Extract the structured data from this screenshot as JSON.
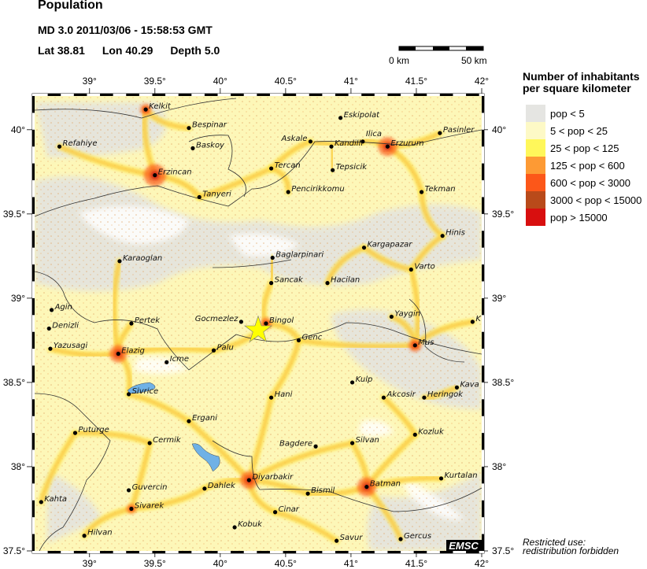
{
  "header": {
    "title": "Population",
    "event": "MD 3.0  2011/03/06 - 15:58:53 GMT",
    "lat_label": "Lat 38.81",
    "lon_label": "Lon  40.29",
    "depth_label": "Depth  5.0"
  },
  "scale_bar": {
    "start_label": "0 km",
    "end_label": "50 km"
  },
  "map": {
    "lon_range": [
      38.58,
      42.0
    ],
    "lat_range": [
      37.5,
      40.2
    ],
    "lon_ticks": [
      "39°",
      "39.5°",
      "40°",
      "40.5°",
      "41°",
      "41.5°",
      "42°"
    ],
    "lon_tick_values": [
      39,
      39.5,
      40,
      40.5,
      41,
      41.5,
      42
    ],
    "lat_ticks": [
      "40°",
      "39.5°",
      "39°",
      "38.5°",
      "38°",
      "37.5°"
    ],
    "lat_tick_values": [
      40,
      39.5,
      39,
      38.5,
      38,
      37.5
    ],
    "epicenter": {
      "lat": 38.81,
      "lon": 40.29,
      "color": "#ffff00"
    },
    "lake_color": "#6fb1e6",
    "cities": [
      {
        "name": "Kelkit",
        "lon": 39.43,
        "lat": 40.12
      },
      {
        "name": "Bespinar",
        "lon": 39.76,
        "lat": 40.01
      },
      {
        "name": "Refahiye",
        "lon": 38.77,
        "lat": 39.9
      },
      {
        "name": "Baskoy",
        "lon": 39.79,
        "lat": 39.89
      },
      {
        "name": "Erzincan",
        "lon": 39.5,
        "lat": 39.73
      },
      {
        "name": "Tanyeri",
        "lon": 39.84,
        "lat": 39.6
      },
      {
        "name": "Karaoglan",
        "lon": 39.23,
        "lat": 39.22
      },
      {
        "name": "Agin",
        "lon": 38.71,
        "lat": 38.93
      },
      {
        "name": "Denizli",
        "lon": 38.69,
        "lat": 38.82
      },
      {
        "name": "Pertek",
        "lon": 39.32,
        "lat": 38.85
      },
      {
        "name": "Yazusagi",
        "lon": 38.7,
        "lat": 38.7
      },
      {
        "name": "Elazig",
        "lon": 39.22,
        "lat": 38.67
      },
      {
        "name": "Icme",
        "lon": 39.59,
        "lat": 38.62
      },
      {
        "name": "Palu",
        "lon": 39.95,
        "lat": 38.69
      },
      {
        "name": "Sivrice",
        "lon": 39.3,
        "lat": 38.43
      },
      {
        "name": "Ergani",
        "lon": 39.76,
        "lat": 38.27
      },
      {
        "name": "Puturge",
        "lon": 38.89,
        "lat": 38.2
      },
      {
        "name": "Cermik",
        "lon": 39.46,
        "lat": 38.14
      },
      {
        "name": "Guvercin",
        "lon": 39.3,
        "lat": 37.86
      },
      {
        "name": "Sivarek",
        "lon": 39.32,
        "lat": 37.75
      },
      {
        "name": "Kahta",
        "lon": 38.63,
        "lat": 37.79
      },
      {
        "name": "Hilvan",
        "lon": 38.96,
        "lat": 37.59
      },
      {
        "name": "Dahlek",
        "lon": 39.88,
        "lat": 37.87
      },
      {
        "name": "Kobuk",
        "lon": 40.11,
        "lat": 37.64
      },
      {
        "name": "Diyarbakir",
        "lon": 40.22,
        "lat": 37.92
      },
      {
        "name": "Eskipolat",
        "lon": 40.92,
        "lat": 40.07
      },
      {
        "name": "Askale",
        "lon": 40.69,
        "lat": 39.93
      },
      {
        "name": "Kandilli",
        "lon": 40.85,
        "lat": 39.9
      },
      {
        "name": "Ilica",
        "lon": 41.09,
        "lat": 39.93
      },
      {
        "name": "Erzurum",
        "lon": 41.28,
        "lat": 39.9
      },
      {
        "name": "Pasinler",
        "lon": 41.68,
        "lat": 39.98
      },
      {
        "name": "Tercan",
        "lon": 40.39,
        "lat": 39.77
      },
      {
        "name": "Tepsicik",
        "lon": 40.86,
        "lat": 39.76
      },
      {
        "name": "Pencirikkomu",
        "lon": 40.52,
        "lat": 39.63
      },
      {
        "name": "Tekman",
        "lon": 41.54,
        "lat": 39.63
      },
      {
        "name": "Hinis",
        "lon": 41.7,
        "lat": 39.37
      },
      {
        "name": "Kargapazar",
        "lon": 41.1,
        "lat": 39.3
      },
      {
        "name": "Baglarpinari",
        "lon": 40.4,
        "lat": 39.24
      },
      {
        "name": "Varto",
        "lon": 41.46,
        "lat": 39.17
      },
      {
        "name": "Sancak",
        "lon": 40.39,
        "lat": 39.09
      },
      {
        "name": "Hacilan",
        "lon": 40.82,
        "lat": 39.09
      },
      {
        "name": "Yaygin",
        "lon": 41.31,
        "lat": 38.89
      },
      {
        "name": "K",
        "lon": 41.93,
        "lat": 38.86
      },
      {
        "name": "Gocmezlez",
        "lon": 40.16,
        "lat": 38.86
      },
      {
        "name": "Bingol",
        "lon": 40.35,
        "lat": 38.85
      },
      {
        "name": "Genc",
        "lon": 40.6,
        "lat": 38.75
      },
      {
        "name": "Mus",
        "lon": 41.49,
        "lat": 38.72
      },
      {
        "name": "Kulp",
        "lon": 41.01,
        "lat": 38.5
      },
      {
        "name": "Hani",
        "lon": 40.39,
        "lat": 38.41
      },
      {
        "name": "Akcosir",
        "lon": 41.25,
        "lat": 38.41
      },
      {
        "name": "Heringok",
        "lon": 41.56,
        "lat": 38.41
      },
      {
        "name": "Kava",
        "lon": 41.81,
        "lat": 38.47
      },
      {
        "name": "Kozluk",
        "lon": 41.49,
        "lat": 38.19
      },
      {
        "name": "Silvan",
        "lon": 41.01,
        "lat": 38.14
      },
      {
        "name": "Bagdere",
        "lon": 40.73,
        "lat": 38.12
      },
      {
        "name": "Kurtalan",
        "lon": 41.69,
        "lat": 37.93
      },
      {
        "name": "Batman",
        "lon": 41.12,
        "lat": 37.88
      },
      {
        "name": "Bismil",
        "lon": 40.67,
        "lat": 37.84
      },
      {
        "name": "Cinar",
        "lon": 40.42,
        "lat": 37.73
      },
      {
        "name": "Savur",
        "lon": 40.89,
        "lat": 37.56
      },
      {
        "name": "Gercus",
        "lon": 41.38,
        "lat": 37.57
      }
    ]
  },
  "legend": {
    "title_line1": "Number of inhabitants",
    "title_line2": "per square kilometer",
    "items": [
      {
        "label": "pop < 5",
        "color": "#e5e5e2"
      },
      {
        "label": "5 < pop < 25",
        "color": "#fdf9c6"
      },
      {
        "label": "25 < pop < 125",
        "color": "#fff75a"
      },
      {
        "label": "125 < pop < 600",
        "color": "#fd9a34"
      },
      {
        "label": "600 < pop < 3000",
        "color": "#fc5719"
      },
      {
        "label": "3000 < pop < 15000",
        "color": "#b94a1a"
      },
      {
        "label": "pop > 15000",
        "color": "#d80f0f"
      }
    ]
  },
  "logo": "EMSC",
  "restricted": {
    "line1": "Restricted use:",
    "line2": "redistribution forbidden"
  }
}
